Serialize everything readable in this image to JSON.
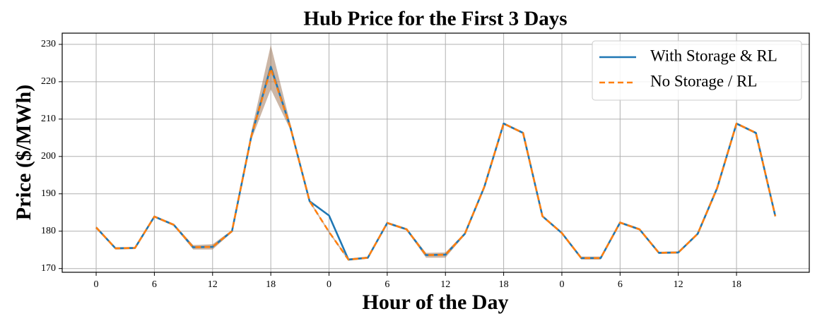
{
  "chart_data": {
    "type": "line",
    "title": "Hub Price for the First 3 Days",
    "xlabel": "Hour of the Day",
    "ylabel": "Price ($/MWh)",
    "x": [
      0,
      2,
      4,
      6,
      8,
      10,
      12,
      14,
      16,
      18,
      20,
      22,
      24,
      26,
      28,
      30,
      32,
      34,
      36,
      38,
      40,
      42,
      44,
      46,
      48,
      50,
      52,
      54,
      56,
      58,
      60,
      62,
      64,
      66,
      68,
      70
    ],
    "series": [
      {
        "name": "With Storage & RL",
        "color": "#1f77b4",
        "dash": false,
        "values": [
          181,
          175.4,
          175.5,
          183.9,
          181.7,
          175.7,
          175.8,
          180,
          205.5,
          224,
          208,
          188,
          184.2,
          172.4,
          172.9,
          182.2,
          180.5,
          173.6,
          173.7,
          179.3,
          191.8,
          208.8,
          206.3,
          184,
          179.5,
          172.8,
          172.8,
          182.3,
          180.5,
          174.2,
          174.3,
          179.3,
          191.5,
          208.8,
          206.3,
          184
        ]
      },
      {
        "name": "No Storage / RL",
        "color": "#ff7f0e",
        "dash": true,
        "values": [
          181,
          175.4,
          175.5,
          183.9,
          181.7,
          175.7,
          175.8,
          180,
          205.5,
          223.5,
          208,
          188,
          179.8,
          172.4,
          172.9,
          182.2,
          180.5,
          173.6,
          173.7,
          179.3,
          191.8,
          208.8,
          206.3,
          184,
          179.5,
          172.8,
          172.8,
          182.3,
          180.5,
          174.2,
          174.3,
          179.3,
          191.5,
          208.8,
          206.3,
          184
        ]
      }
    ],
    "band": {
      "color": "#a07a5c",
      "lower": [
        180.7,
        175.1,
        175.2,
        183.6,
        181.4,
        175.1,
        175.1,
        179.7,
        204.5,
        218,
        207.2,
        187.7,
        179.5,
        172.1,
        172.6,
        181.9,
        180.2,
        172.9,
        172.9,
        179,
        191.5,
        208.5,
        206,
        183.7,
        179.2,
        172.4,
        172.4,
        182,
        180.2,
        173.9,
        174,
        179,
        191.2,
        208.5,
        206,
        183.7
      ],
      "upper": [
        181.3,
        175.7,
        175.8,
        184.2,
        182,
        176.3,
        176.5,
        180.3,
        206.8,
        229.8,
        209,
        188.3,
        180.1,
        172.7,
        173.2,
        182.5,
        180.8,
        174.2,
        174.3,
        179.6,
        192.1,
        209.1,
        206.6,
        184.3,
        179.8,
        173.2,
        173.2,
        182.6,
        180.8,
        174.5,
        174.6,
        179.6,
        191.8,
        209.1,
        206.6,
        184.3
      ]
    },
    "xlim": [
      -3.5,
      73.5
    ],
    "ylim": [
      169,
      233
    ],
    "xticks": [
      0,
      6,
      12,
      18,
      {
        "value": 24,
        "label": "0"
      },
      {
        "value": 30,
        "label": "6"
      },
      {
        "value": 36,
        "label": "12"
      },
      {
        "value": 42,
        "label": "18"
      },
      {
        "value": 48,
        "label": "0"
      },
      {
        "value": 54,
        "label": "6"
      },
      {
        "value": 60,
        "label": "12"
      },
      {
        "value": 66,
        "label": "18"
      }
    ],
    "yticks": [
      170,
      180,
      190,
      200,
      210,
      220,
      230
    ],
    "grid": true,
    "legend": "upper-right"
  }
}
